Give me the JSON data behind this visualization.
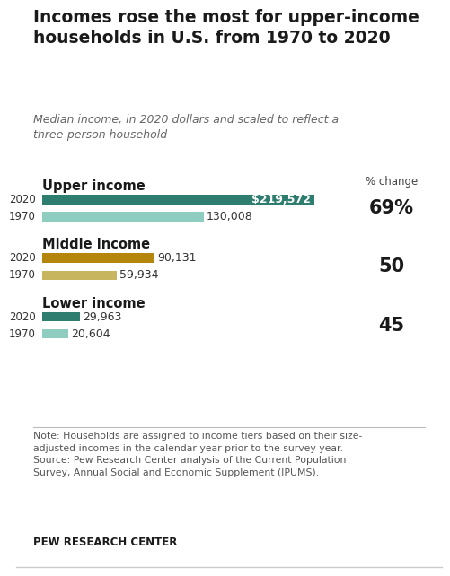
{
  "title": "Incomes rose the most for upper-income\nhouseholds in U.S. from 1970 to 2020",
  "subtitle": "Median income, in 2020 dollars and scaled to reflect a\nthree-person household",
  "groups": [
    {
      "label": "Upper income",
      "bars": [
        {
          "year": "2020",
          "value": 219572,
          "color": "#2e7d6e",
          "label": "$219,572"
        },
        {
          "year": "1970",
          "value": 130008,
          "color": "#8ecdc0",
          "label": "130,008"
        }
      ],
      "pct_change": "69%"
    },
    {
      "label": "Middle income",
      "bars": [
        {
          "year": "2020",
          "value": 90131,
          "color": "#b5860d",
          "label": "90,131"
        },
        {
          "year": "1970",
          "value": 59934,
          "color": "#c8b560",
          "label": "59,934"
        }
      ],
      "pct_change": "50"
    },
    {
      "label": "Lower income",
      "bars": [
        {
          "year": "2020",
          "value": 29963,
          "color": "#2e7d6e",
          "label": "29,963"
        },
        {
          "year": "1970",
          "value": 20604,
          "color": "#8ecdc0",
          "label": "20,604"
        }
      ],
      "pct_change": "45"
    }
  ],
  "max_value": 240000,
  "note": "Note: Households are assigned to income tiers based on their size-\nadjusted incomes in the calendar year prior to the survey year.\nSource: Pew Research Center analysis of the Current Population\nSurvey, Annual Social and Economic Supplement (IPUMS).",
  "source_label": "PEW RESEARCH CENTER",
  "pct_change_header": "% change",
  "bg_color": "#ffffff",
  "panel_bg": "#edeae3",
  "title_color": "#1a1a1a",
  "subtitle_color": "#666666",
  "note_color": "#555555",
  "bar_height": 0.38,
  "bar_label_fontsize": 9,
  "group_label_fontsize": 10.5,
  "year_label_fontsize": 8.5,
  "pct_fontsize": 15
}
